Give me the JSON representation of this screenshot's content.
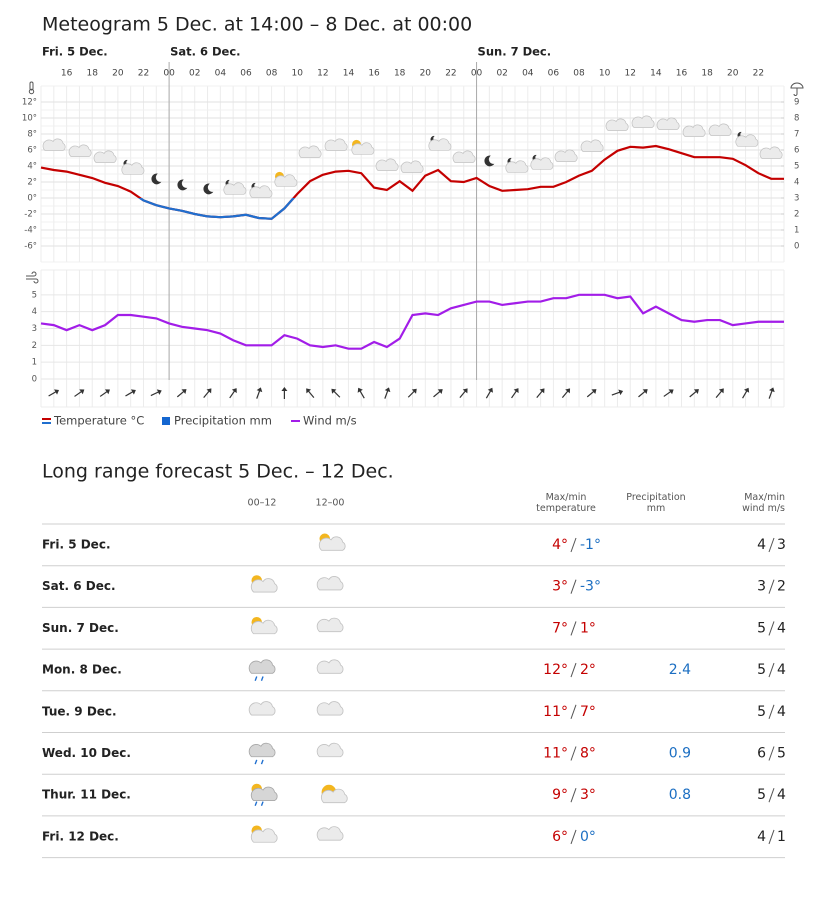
{
  "title": "Meteogram 5 Dec. at 14:00 – 8 Dec. at 00:00",
  "chart_data": [
    {
      "type": "line",
      "categories": [
        null,
        null,
        "16",
        null,
        "18",
        null,
        "20",
        null,
        "22",
        null,
        "00",
        null,
        "02",
        null,
        "04",
        null,
        "06",
        null,
        "08",
        null,
        "10",
        null,
        "12",
        null,
        "14",
        null,
        "16",
        null,
        "18",
        null,
        "20",
        null,
        "22",
        null,
        "00",
        null,
        "02",
        null,
        "04",
        null,
        "06",
        null,
        "08",
        null,
        "10",
        null,
        "12",
        null,
        "14",
        null,
        "16",
        null,
        "18",
        null,
        "20",
        null,
        "22",
        null,
        null
      ],
      "day_labels": [
        "Fri. 5 Dec.",
        null,
        null,
        null,
        null,
        null,
        null,
        null,
        null,
        null,
        "Sat. 6 Dec.",
        null,
        null,
        null,
        null,
        null,
        null,
        null,
        null,
        null,
        null,
        null,
        null,
        null,
        null,
        null,
        null,
        null,
        null,
        null,
        null,
        null,
        null,
        null,
        "Sun. 7 Dec.",
        null,
        null,
        null,
        null,
        null,
        null,
        null,
        null,
        null,
        null,
        null,
        null,
        null,
        null,
        null,
        null,
        null,
        null,
        null,
        null,
        null,
        null,
        null,
        null
      ],
      "series": [
        {
          "name": "Temperature °C",
          "color": "#c40000",
          "color_below_zero": "#1f6fcf",
          "values": [
            3.8,
            3.5,
            3.3,
            2.9,
            2.5,
            1.9,
            1.5,
            0.8,
            -0.3,
            -0.9,
            -1.3,
            -1.6,
            -2.0,
            -2.3,
            -2.4,
            -2.3,
            -2.1,
            -2.5,
            -2.6,
            -1.3,
            0.5,
            2.1,
            2.9,
            3.3,
            3.4,
            3.1,
            1.3,
            1.0,
            2.1,
            0.9,
            2.8,
            3.5,
            2.1,
            2.0,
            2.5,
            1.5,
            0.9,
            1.0,
            1.1,
            1.4,
            1.4,
            2.0,
            2.8,
            3.4,
            4.8,
            5.9,
            6.4,
            6.3,
            6.5,
            6.1,
            5.6,
            5.1,
            5.1,
            5.1,
            4.9,
            4.1,
            3.1,
            2.4,
            2.4
          ]
        },
        {
          "name": "Precipitation mm",
          "type": "bar",
          "axis": "y2",
          "color": "#1466d0",
          "values": [
            0,
            0,
            0,
            0,
            0,
            0,
            0,
            0,
            0,
            0,
            0,
            0,
            0,
            0,
            0,
            0,
            0,
            0,
            0,
            0,
            0,
            0,
            0,
            0,
            0,
            0,
            0,
            0,
            0,
            0,
            0,
            0,
            0,
            0,
            0,
            0,
            0,
            0,
            0,
            0,
            0,
            0,
            0,
            0,
            0,
            0,
            0,
            0,
            0,
            0,
            0,
            0,
            0,
            0,
            0,
            0,
            0,
            0,
            0
          ]
        }
      ],
      "ylim": [
        -8,
        14
      ],
      "yticks": [
        {
          "value": -6,
          "label": "-6°"
        },
        {
          "value": -4,
          "label": "-4°"
        },
        {
          "value": -2,
          "label": "-2°"
        },
        {
          "value": 0,
          "label": "0°"
        },
        {
          "value": 2,
          "label": "2°"
        },
        {
          "value": 4,
          "label": "4°"
        },
        {
          "value": 6,
          "label": "6°"
        },
        {
          "value": 8,
          "label": "8°"
        },
        {
          "value": 10,
          "label": "10°"
        },
        {
          "value": 12,
          "label": "12°"
        }
      ],
      "y2lim": [
        -1,
        10
      ],
      "y2ticks": [
        0,
        1,
        2,
        3,
        4,
        5,
        6,
        7,
        8,
        9
      ],
      "grid": true
    },
    {
      "type": "line",
      "series": [
        {
          "name": "Wind m/s",
          "color": "#a21de8",
          "values": [
            3.3,
            3.2,
            2.9,
            3.2,
            2.9,
            3.2,
            3.8,
            3.8,
            3.7,
            3.6,
            3.3,
            3.1,
            3.0,
            2.9,
            2.7,
            2.3,
            2.0,
            2.0,
            2.0,
            2.6,
            2.4,
            2.0,
            1.9,
            2.0,
            1.8,
            1.8,
            2.2,
            1.9,
            2.4,
            3.8,
            3.9,
            3.8,
            4.2,
            4.4,
            4.6,
            4.6,
            4.4,
            4.5,
            4.6,
            4.6,
            4.8,
            4.8,
            5.0,
            5.0,
            5.0,
            4.8,
            4.9,
            3.9,
            4.3,
            3.9,
            3.5,
            3.4,
            3.5,
            3.5,
            3.2,
            3.3,
            3.4,
            3.4,
            3.4
          ]
        }
      ],
      "wind_direction": [
        null,
        60,
        null,
        55,
        null,
        55,
        null,
        60,
        null,
        65,
        null,
        50,
        null,
        40,
        null,
        35,
        null,
        20,
        null,
        0,
        null,
        -40,
        null,
        -45,
        null,
        -30,
        null,
        20,
        null,
        45,
        null,
        50,
        null,
        40,
        null,
        30,
        null,
        35,
        null,
        40,
        null,
        40,
        null,
        50,
        null,
        70,
        null,
        50,
        null,
        55,
        null,
        50,
        null,
        40,
        null,
        30,
        null,
        20,
        null
      ],
      "ylim": [
        0,
        6
      ],
      "yticks": [
        0,
        1,
        2,
        3,
        4,
        5
      ],
      "grid": true
    }
  ],
  "long_range": {
    "title": "Long range forecast 5 Dec. – 12 Dec.",
    "headers": [
      "00–12",
      "12–00",
      "Max/min temperature",
      "Precipitation mm",
      "Max/min wind m/s"
    ],
    "rows": [
      [
        "Fri. 5 Dec.",
        "4°",
        "-1°",
        null,
        "4",
        "3"
      ],
      [
        "Sat. 6 Dec.",
        "3°",
        "-3°",
        null,
        "3",
        "2"
      ],
      [
        "Sun. 7 Dec.",
        "7°",
        "1°",
        null,
        "5",
        "4"
      ],
      [
        "Mon. 8 Dec.",
        "12°",
        "2°",
        "2.4",
        "5",
        "4"
      ],
      [
        "Tue. 9 Dec.",
        "11°",
        "7°",
        null,
        "5",
        "4"
      ],
      [
        "Wed. 10 Dec.",
        "11°",
        "8°",
        "0.9",
        "6",
        "5"
      ],
      [
        "Thur. 11 Dec.",
        "9°",
        "3°",
        "0.8",
        "5",
        "4"
      ],
      [
        "Fri. 12 Dec.",
        "6°",
        "0°",
        null,
        "4",
        "1"
      ]
    ]
  }
}
